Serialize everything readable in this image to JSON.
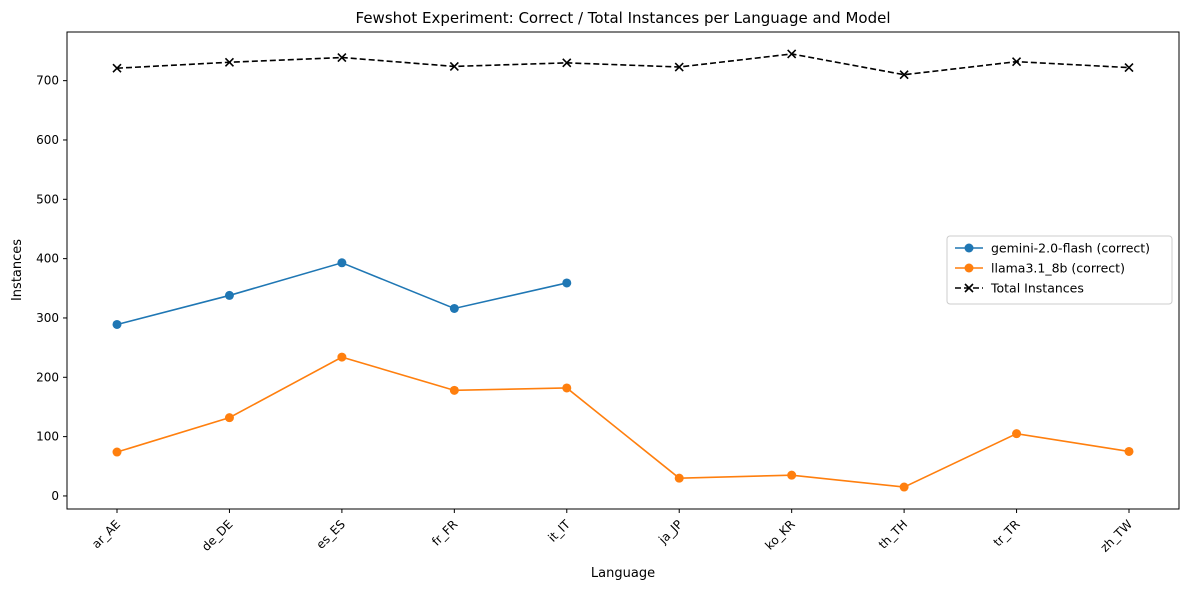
{
  "chart_data": {
    "type": "line",
    "title": "Fewshot Experiment: Correct / Total Instances per Language and Model",
    "xlabel": "Language",
    "ylabel": "Instances",
    "categories": [
      "ar_AE",
      "de_DE",
      "es_ES",
      "fr_FR",
      "it_IT",
      "ja_JP",
      "ko_KR",
      "th_TH",
      "tr_TR",
      "zh_TW"
    ],
    "ylim": [
      -22,
      782
    ],
    "yticks": [
      0,
      100,
      200,
      300,
      400,
      500,
      600,
      700
    ],
    "grid": false,
    "legend_position": "center-right",
    "series": [
      {
        "name": "gemini-2.0-flash (correct)",
        "values": [
          289,
          338,
          393,
          316,
          359,
          null,
          null,
          null,
          null,
          null
        ],
        "color": "#1f77b4",
        "marker": "circle",
        "linestyle": "solid"
      },
      {
        "name": "llama3.1_8b (correct)",
        "values": [
          74,
          132,
          234,
          178,
          182,
          30,
          35,
          15,
          105,
          75
        ],
        "color": "#ff7f0e",
        "marker": "circle",
        "linestyle": "solid"
      },
      {
        "name": "Total Instances",
        "values": [
          721,
          731,
          739,
          724,
          730,
          723,
          745,
          710,
          732,
          722
        ],
        "color": "#000000",
        "marker": "x",
        "linestyle": "dashed"
      }
    ]
  }
}
